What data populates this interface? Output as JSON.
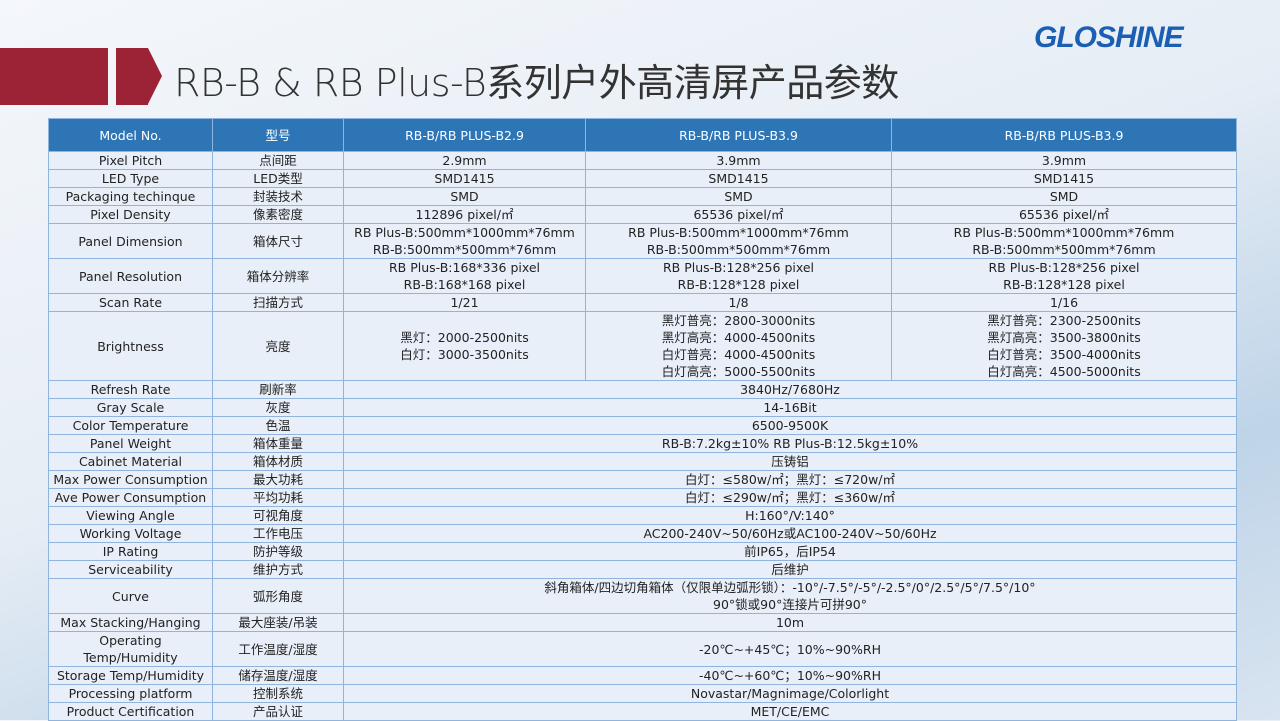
{
  "title": "RB-B & RB Plus-B系列户外高清屏产品参数",
  "logo": "GLOSHINE",
  "colors": {
    "accent_red": "#9b2335",
    "header_blue": "#2e75b6",
    "logo_blue": "#1a5fb4"
  },
  "table": {
    "headers": [
      "Model No.",
      "型号",
      "RB-B/RB PLUS-B2.9",
      "RB-B/RB PLUS-B3.9",
      "RB-B/RB PLUS-B3.9"
    ],
    "rows": [
      {
        "en": "Pixel Pitch",
        "cn": "点间距",
        "values": [
          "2.9mm",
          "3.9mm",
          "3.9mm"
        ]
      },
      {
        "en": "LED Type",
        "cn": "LED类型",
        "values": [
          "SMD1415",
          "SMD1415",
          "SMD1415"
        ]
      },
      {
        "en": "Packaging techinque",
        "cn": "封装技术",
        "values": [
          "SMD",
          "SMD",
          "SMD"
        ]
      },
      {
        "en": "Pixel Density",
        "cn": "像素密度",
        "values": [
          "112896 pixel/㎡",
          "65536 pixel/㎡",
          "65536 pixel/㎡"
        ]
      },
      {
        "en": "Panel Dimension",
        "cn": "箱体尺寸",
        "values": [
          [
            "RB Plus-B:500mm*1000mm*76mm",
            "RB-B:500mm*500mm*76mm"
          ],
          [
            "RB Plus-B:500mm*1000mm*76mm",
            "RB-B:500mm*500mm*76mm"
          ],
          [
            "RB Plus-B:500mm*1000mm*76mm",
            "RB-B:500mm*500mm*76mm"
          ]
        ]
      },
      {
        "en": "Panel Resolution",
        "cn": "箱体分辨率",
        "values": [
          [
            "RB Plus-B:168*336 pixel",
            "RB-B:168*168 pixel"
          ],
          [
            "RB Plus-B:128*256 pixel",
            "RB-B:128*128 pixel"
          ],
          [
            "RB Plus-B:128*256 pixel",
            "RB-B:128*128 pixel"
          ]
        ]
      },
      {
        "en": "Scan Rate",
        "cn": "扫描方式",
        "values": [
          "1/21",
          "1/8",
          "1/16"
        ]
      },
      {
        "en": "Brightness",
        "cn": "亮度",
        "values": [
          [
            "黑灯：2000-2500nits",
            "白灯：3000-3500nits"
          ],
          [
            "黑灯普亮：2800-3000nits",
            "黑灯高亮：4000-4500nits",
            "白灯普亮：4000-4500nits",
            "白灯高亮：5000-5500nits"
          ],
          [
            "黑灯普亮：2300-2500nits",
            "黑灯高亮：3500-3800nits",
            "白灯普亮：3500-4000nits",
            "白灯高亮：4500-5000nits"
          ]
        ],
        "h": 68
      },
      {
        "en": "Refresh Rate",
        "cn": "刷新率",
        "value": "3840Hz/7680Hz"
      },
      {
        "en": "Gray Scale",
        "cn": "灰度",
        "value": "14-16Bit"
      },
      {
        "en": "Color Temperature",
        "cn": "色温",
        "value": "6500-9500K"
      },
      {
        "en": "Panel Weight",
        "cn": "箱体重量",
        "value": "RB-B:7.2kg±10%  RB Plus-B:12.5kg±10%"
      },
      {
        "en": "Cabinet Material",
        "cn": "箱体材质",
        "value": "压铸铝"
      },
      {
        "en": "Max Power Consumption",
        "cn": "最大功耗",
        "value": "白灯：≤580w/㎡；黑灯：≤720w/㎡"
      },
      {
        "en": "Ave Power Consumption",
        "cn": "平均功耗",
        "value": "白灯：≤290w/㎡；黑灯：≤360w/㎡"
      },
      {
        "en": "Viewing Angle",
        "cn": "可视角度",
        "value": "H:160°/V:140°"
      },
      {
        "en": "Working Voltage",
        "cn": "工作电压",
        "value": "AC200-240V~50/60Hz或AC100-240V~50/60Hz"
      },
      {
        "en": "IP Rating",
        "cn": "防护等级",
        "value": "前IP65，后IP54"
      },
      {
        "en": "Serviceability",
        "cn": "维护方式",
        "value": "后维护"
      },
      {
        "en": "Curve",
        "cn": "弧形角度",
        "value": [
          "斜角箱体/四边切角箱体（仅限单边弧形锁）：-10°/-7.5°/-5°/-2.5°/0°/2.5°/5°/7.5°/10°",
          "90°锁或90°连接片可拼90°"
        ]
      },
      {
        "en": "Max Stacking/Hanging",
        "cn": "最大座装/吊装",
        "value": "10m"
      },
      {
        "en": [
          "Operating",
          "Temp/Humidity"
        ],
        "cn": "工作温度/湿度",
        "value": "-20℃~+45℃；10%~90%RH"
      },
      {
        "en": "Storage Temp/Humidity",
        "cn": "储存温度/湿度",
        "value": "-40℃~+60℃；10%~90%RH"
      },
      {
        "en": "Processing platform",
        "cn": "控制系统",
        "value": "Novastar/Magnimage/Colorlight"
      },
      {
        "en": "Product Certification",
        "cn": "产品认证",
        "value": "MET/CE/EMC"
      }
    ]
  }
}
